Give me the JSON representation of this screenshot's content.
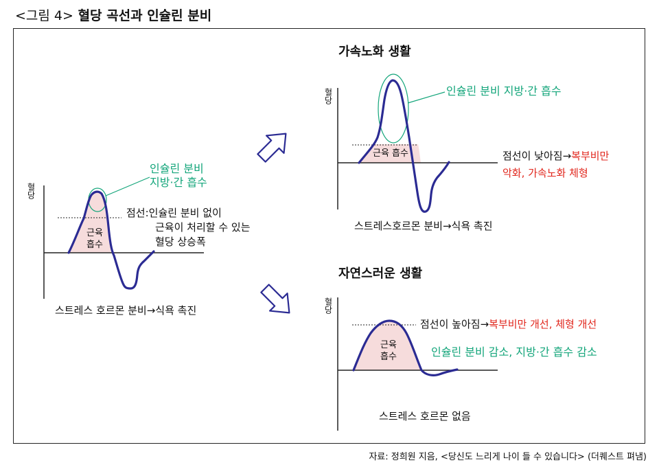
{
  "figure": {
    "tag": "<그림 4>",
    "title": "혈당 곡선과 인슐린 분비"
  },
  "y_axis_label": "혈당",
  "area_label_line1": "근육",
  "area_label_line2": "흡수",
  "area_label_single": "근육 흡수",
  "left_panel": {
    "insulin_line1": "인슐린 분비",
    "insulin_line2": "지방·간 흡수",
    "dotted_line1": "점선:인슐린 분비 없이",
    "dotted_line2": "근육이 처리할 수 있는",
    "dotted_line3": "혈당 상승폭",
    "stress": "스트레스 호르몬 분비→식욕 촉진"
  },
  "top_panel": {
    "heading": "가속노화 생활",
    "insulin": "인슐린 분비 지방·간 흡수",
    "dotted_line1_black": "점선이 낮아짐→",
    "dotted_line1_red": "복부비만",
    "dotted_line2_red": "악화, 가속노화 체형",
    "stress": "스트레스호르몬 분비→식욕 촉진"
  },
  "bottom_panel": {
    "heading": "자연스러운 생활",
    "dotted_black": "점선이 높아짐→",
    "dotted_red": "복부비만 개선, 체형 개선",
    "insulin": "인슐린 분비 감소, 지방·간 흡수 감소",
    "stress": "스트레스 호르몬 없음"
  },
  "source": "자료: 정희원 지음, <당신도 느리게 나이 들 수 있습니다> (더퀘스트 펴냄)",
  "colors": {
    "curve": "#2b2b93",
    "fill": "#f6dcdc",
    "insulin": "#13a57a",
    "warning": "#e1261c",
    "arrow": "#2b2b93"
  }
}
